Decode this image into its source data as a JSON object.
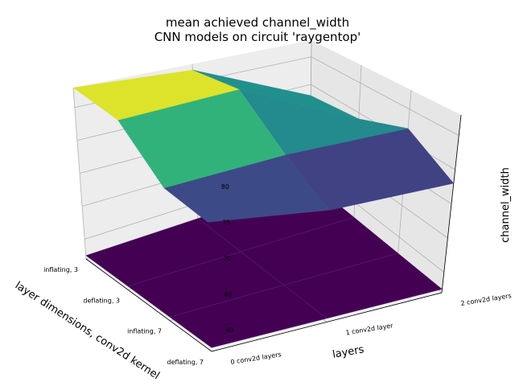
{
  "chart_data": {
    "type": "surface3d",
    "title": [
      "mean achieved channel_width",
      "CNN models on circuit 'raygentop'"
    ],
    "xlabel": "layer dimensions, conv2d kernel",
    "ylabel": "layers",
    "zlabel": "channel_width",
    "x_categories": [
      "inflating, 3",
      "deflating, 3",
      "inflating, 7",
      "deflating, 7"
    ],
    "y_categories": [
      "0 conv2d layers",
      "1 conv2d layer",
      "2 conv2d layers"
    ],
    "z_ticks": [
      "60",
      "65",
      "70",
      "75",
      "80"
    ],
    "zlim": [
      57,
      83
    ],
    "colormap": "viridis",
    "floor_color": "#440154",
    "surface_color_range": [
      73,
      83
    ],
    "z_values": [
      [
        83,
        82,
        73
      ],
      [
        82,
        83,
        74
      ],
      [
        76,
        77,
        77
      ],
      [
        75,
        73,
        73
      ]
    ]
  }
}
